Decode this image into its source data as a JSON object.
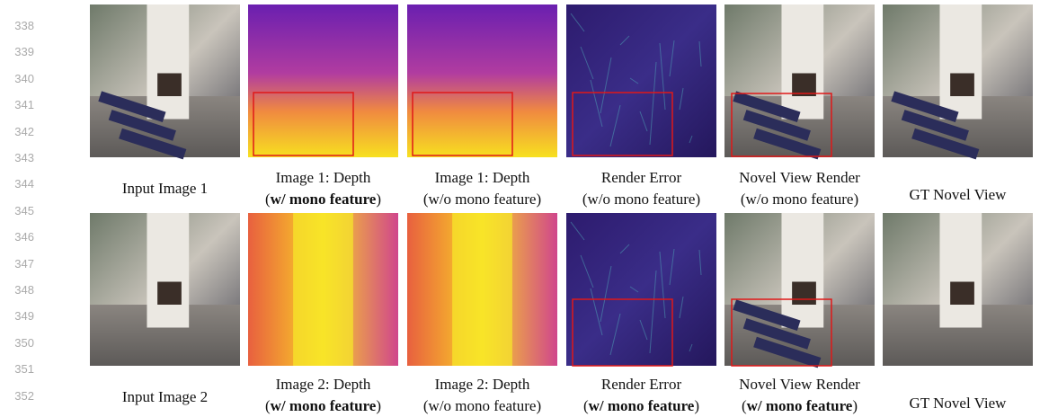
{
  "line_numbers": [
    "338",
    "339",
    "340",
    "341",
    "342",
    "343",
    "344",
    "345",
    "346",
    "347",
    "348",
    "349",
    "350",
    "351",
    "352"
  ],
  "rows": [
    {
      "panels": [
        {
          "caption": [
            [
              {
                "text": "Input Image 1"
              }
            ]
          ]
        },
        {
          "caption": [
            [
              {
                "text": "Image 1: Depth"
              }
            ],
            [
              {
                "text": "("
              },
              {
                "text": "w/ mono feature",
                "bold": true
              },
              {
                "text": ")"
              }
            ]
          ]
        },
        {
          "caption": [
            [
              {
                "text": "Image 1: Depth"
              }
            ],
            [
              {
                "text": "(w/o mono feature)"
              }
            ]
          ]
        },
        {
          "caption": [
            [
              {
                "text": "Render Error"
              }
            ],
            [
              {
                "text": "(w/o mono feature)"
              }
            ]
          ]
        },
        {
          "caption": [
            [
              {
                "text": "Novel View Render"
              }
            ],
            [
              {
                "text": "(w/o mono feature)"
              }
            ]
          ]
        },
        {
          "caption": [
            [
              {
                "text": "GT Novel View"
              }
            ]
          ]
        }
      ]
    },
    {
      "panels": [
        {
          "caption": [
            [
              {
                "text": "Input Image 2"
              }
            ]
          ]
        },
        {
          "caption": [
            [
              {
                "text": "Image 2: Depth"
              }
            ],
            [
              {
                "text": "("
              },
              {
                "text": "w/ mono feature",
                "bold": true
              },
              {
                "text": ")"
              }
            ]
          ]
        },
        {
          "caption": [
            [
              {
                "text": "Image 2: Depth"
              }
            ],
            [
              {
                "text": "(w/o mono feature)"
              }
            ]
          ]
        },
        {
          "caption": [
            [
              {
                "text": "Render Error"
              }
            ],
            [
              {
                "text": "("
              },
              {
                "text": "w/ mono feature",
                "bold": true
              },
              {
                "text": ")"
              }
            ]
          ]
        },
        {
          "caption": [
            [
              {
                "text": "Novel View Render"
              }
            ],
            [
              {
                "text": "("
              },
              {
                "text": "w/ mono feature",
                "bold": true
              },
              {
                "text": ")"
              }
            ]
          ]
        },
        {
          "caption": [
            [
              {
                "text": "GT Novel View"
              }
            ]
          ]
        }
      ]
    }
  ]
}
